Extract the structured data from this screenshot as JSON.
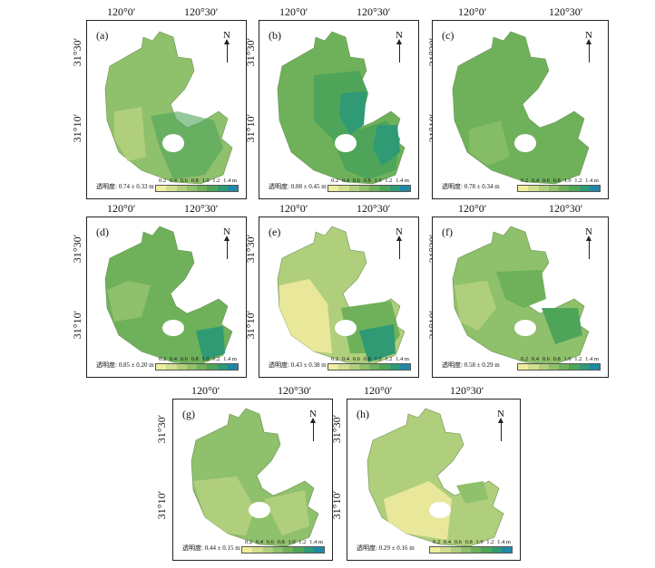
{
  "coords": {
    "lon_left": "120°0′",
    "lon_right": "120°30′",
    "lat_top": "31°30′",
    "lat_bottom": "31°10′"
  },
  "north_label": "N",
  "legend": {
    "ticks": [
      "0.2",
      "0.4",
      "0.6",
      "0.8",
      "1.0",
      "1.2",
      "1.4 m"
    ],
    "colors": [
      "#f0ee9c",
      "#d2df8e",
      "#b0cf7c",
      "#8fc06b",
      "#6fb15b",
      "#4ea55a",
      "#2f9a74",
      "#1f88a6"
    ]
  },
  "panels": [
    {
      "label": "(a)",
      "stat": "透明度: 0.74 ± 0.33 m",
      "base": "#8fc06b"
    },
    {
      "label": "(b)",
      "stat": "透明度: 0.88 ± 0.45 m",
      "base": "#6fb15b"
    },
    {
      "label": "(c)",
      "stat": "透明度: 0.78 ± 0.34 m",
      "base": "#6fb15b"
    },
    {
      "label": "(d)",
      "stat": "透明度: 0.85 ± 0.20 m",
      "base": "#6fb15b"
    },
    {
      "label": "(e)",
      "stat": "透明度: 0.43 ± 0.38 m",
      "base": "#b0cf7c"
    },
    {
      "label": "(f)",
      "stat": "透明度: 0.58 ± 0.29 m",
      "base": "#8fc06b"
    },
    {
      "label": "(g)",
      "stat": "透明度: 0.44 ± 0.15 m",
      "base": "#8fc06b"
    },
    {
      "label": "(h)",
      "stat": "透明度: 0.29 ± 0.16 m",
      "base": "#b0cf7c"
    }
  ]
}
